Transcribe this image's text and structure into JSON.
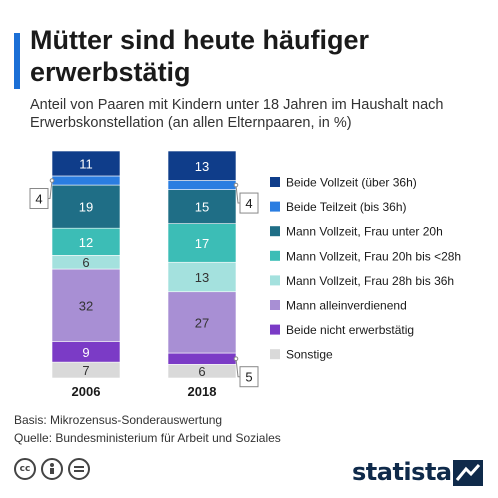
{
  "title": "Mütter sind heute häufiger erwerbstätig",
  "subtitle": "Anteil von Paaren mit Kindern unter 18 Jahren im Haushalt nach Erwerbskonstellation (an allen Elternpaaren, in %)",
  "colors": {
    "accent": "#1b6fd6",
    "beide_vollzeit": "#0f3d8a",
    "beide_teilzeit": "#2a7de1",
    "mann_vz_frau_u20": "#1f6e86",
    "mann_vz_frau_20_28": "#3cbdb6",
    "mann_vz_frau_28_36": "#a4e1de",
    "mann_allein": "#a88fd4",
    "beide_nicht": "#7b3bc6",
    "sonstige": "#d9d9d9"
  },
  "chart_data": {
    "type": "bar",
    "stacked": true,
    "categories": [
      "2006",
      "2018"
    ],
    "series": [
      {
        "name": "Sonstige",
        "color_key": "sonstige",
        "values": [
          7,
          6
        ],
        "labels": [
          "7",
          "6"
        ]
      },
      {
        "name": "Beide nicht erwerbstätig",
        "color_key": "beide_nicht",
        "values": [
          9,
          5
        ],
        "labels": [
          "9",
          "5"
        ]
      },
      {
        "name": "Mann alleinverdienend",
        "color_key": "mann_allein",
        "values": [
          32,
          27
        ],
        "labels": [
          "32",
          "27"
        ]
      },
      {
        "name": "Mann Vollzeit, Frau 28h bis 36h",
        "color_key": "mann_vz_frau_28_36",
        "values": [
          6,
          13
        ],
        "labels": [
          "6",
          "13"
        ]
      },
      {
        "name": "Mann Vollzeit, Frau 20h bis <28h",
        "color_key": "mann_vz_frau_20_28",
        "values": [
          12,
          17
        ],
        "labels": [
          "12",
          "17"
        ]
      },
      {
        "name": "Mann Vollzeit, Frau unter 20h",
        "color_key": "mann_vz_frau_u20",
        "values": [
          19,
          15
        ],
        "labels": [
          "19",
          "15"
        ]
      },
      {
        "name": "Beide Teilzeit (bis 36h)",
        "color_key": "beide_teilzeit",
        "values": [
          4,
          4
        ],
        "labels": [
          "4",
          "4"
        ]
      },
      {
        "name": "Beide Vollzeit (über 36h)",
        "color_key": "beide_vollzeit",
        "values": [
          11,
          13
        ],
        "labels": [
          "11",
          "13"
        ]
      }
    ],
    "callouts": [
      {
        "category": "2006",
        "series": "Beide Teilzeit (bis 36h)",
        "side": "left",
        "label": "4"
      },
      {
        "category": "2018",
        "series": "Beide Teilzeit (bis 36h)",
        "side": "right",
        "label": "4"
      },
      {
        "category": "2018",
        "series": "Beide nicht erwerbstätig",
        "side": "right",
        "label": "5"
      }
    ],
    "legend": [
      "Beide Vollzeit (über 36h)",
      "Beide Teilzeit (bis 36h)",
      "Mann Vollzeit, Frau unter 20h",
      "Mann Vollzeit, Frau 20h bis <28h",
      "Mann Vollzeit, Frau 28h bis 36h",
      "Mann alleinverdienend",
      "Beide nicht erwerbstätig",
      "Sonstige"
    ],
    "legend_position": "right",
    "grid": false,
    "ylim": [
      0,
      100
    ]
  },
  "footer": {
    "basis": "Basis: Mikrozensus-Sonderauswertung",
    "source": "Quelle: Bundesministerium für Arbeit und Soziales",
    "brand": "statista"
  },
  "icons": [
    "creative-commons-icon",
    "attribution-icon",
    "no-derivatives-icon",
    "statista-logo-icon"
  ]
}
